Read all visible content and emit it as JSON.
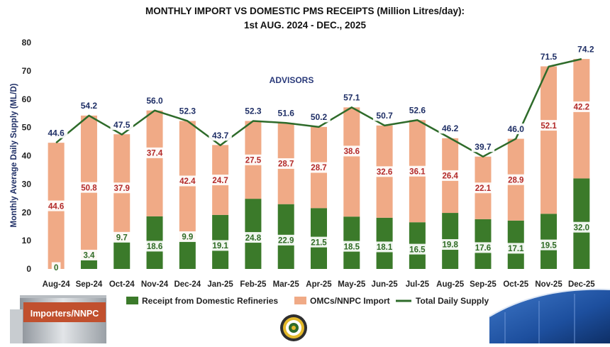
{
  "chart_data": {
    "type": "bar",
    "title": "MONTHLY IMPORT VS DOMESTIC PMS RECEIPTS (Million Litres/day):",
    "subtitle": "1st AUG. 2024 -  DEC., 2025",
    "ylabel": "Monthly Average Daily Supply  (ML/D)",
    "xlabel": "",
    "ylim": [
      0,
      80
    ],
    "yticks": [
      0,
      10,
      20,
      30,
      40,
      50,
      60,
      70,
      80
    ],
    "grid": false,
    "legend_position": "bottom",
    "categories": [
      "Aug-24",
      "Sep-24",
      "Oct-24",
      "Nov-24",
      "Dec-24",
      "Jan-25",
      "Feb-25",
      "Mar-25",
      "Apr-25",
      "May-25",
      "Jun-25",
      "Jul-25",
      "Aug-25",
      "Sep-25",
      "Oct-25",
      "Nov-25",
      "Dec-25"
    ],
    "series": [
      {
        "name": "Receipt from Domestic Refineries",
        "kind": "stacked-bar",
        "color": "#3b7a2a",
        "values": [
          0,
          3.4,
          9.7,
          18.6,
          9.9,
          19.1,
          24.8,
          22.9,
          21.5,
          18.5,
          18.1,
          16.5,
          19.8,
          17.6,
          17.1,
          19.5,
          32.0
        ],
        "labels": [
          "0",
          "3.4",
          "9.7",
          "18.6",
          "9.9",
          "19.1",
          "24.8",
          "22.9",
          "21.5",
          "18.5",
          "18.1",
          "16.5",
          "19.8",
          "17.6",
          "17.1",
          "19.5",
          "32.0"
        ]
      },
      {
        "name": "OMCs/NNPC Import",
        "kind": "stacked-bar",
        "color": "#f0aa86",
        "values": [
          44.6,
          50.8,
          37.9,
          37.4,
          42.4,
          24.7,
          27.5,
          28.7,
          28.7,
          38.6,
          32.6,
          36.1,
          26.4,
          22.1,
          28.9,
          52.1,
          42.2
        ],
        "labels": [
          "44.6",
          "50.8",
          "37.9",
          "37.4",
          "42.4",
          "24.7",
          "27.5",
          "28.7",
          "28.7",
          "38.6",
          "32.6",
          "36.1",
          "26.4",
          "22.1",
          "28.9",
          "52.1",
          "42.2"
        ]
      },
      {
        "name": "Total Daily Supply",
        "kind": "line",
        "color": "#2e6b2a",
        "values": [
          44.6,
          54.2,
          47.5,
          56.0,
          52.3,
          43.7,
          52.3,
          51.6,
          50.2,
          57.1,
          50.7,
          52.6,
          46.2,
          39.7,
          46.0,
          71.5,
          74.2
        ],
        "labels": [
          "44.6",
          "54.2",
          "47.5",
          "56.0",
          "52.3",
          "43.7",
          "52.3",
          "51.6",
          "50.2",
          "57.1",
          "50.7",
          "52.6",
          "46.2",
          "39.7",
          "46.0",
          "71.5",
          "74.2"
        ]
      }
    ],
    "watermark": "ADVISORS",
    "colors": {
      "domestic": "#3b7a2a",
      "import": "#f0aa86",
      "total_line": "#2e6b2a",
      "import_label": "#b22a2a",
      "domestic_label": "#2f6b25",
      "total_label": "#1f2f66",
      "title": "#111111"
    }
  },
  "decorations": {
    "left_image_caption": "Importers/NNPC",
    "logo": "seal-logo",
    "right_image": "storage-tank-photo"
  }
}
